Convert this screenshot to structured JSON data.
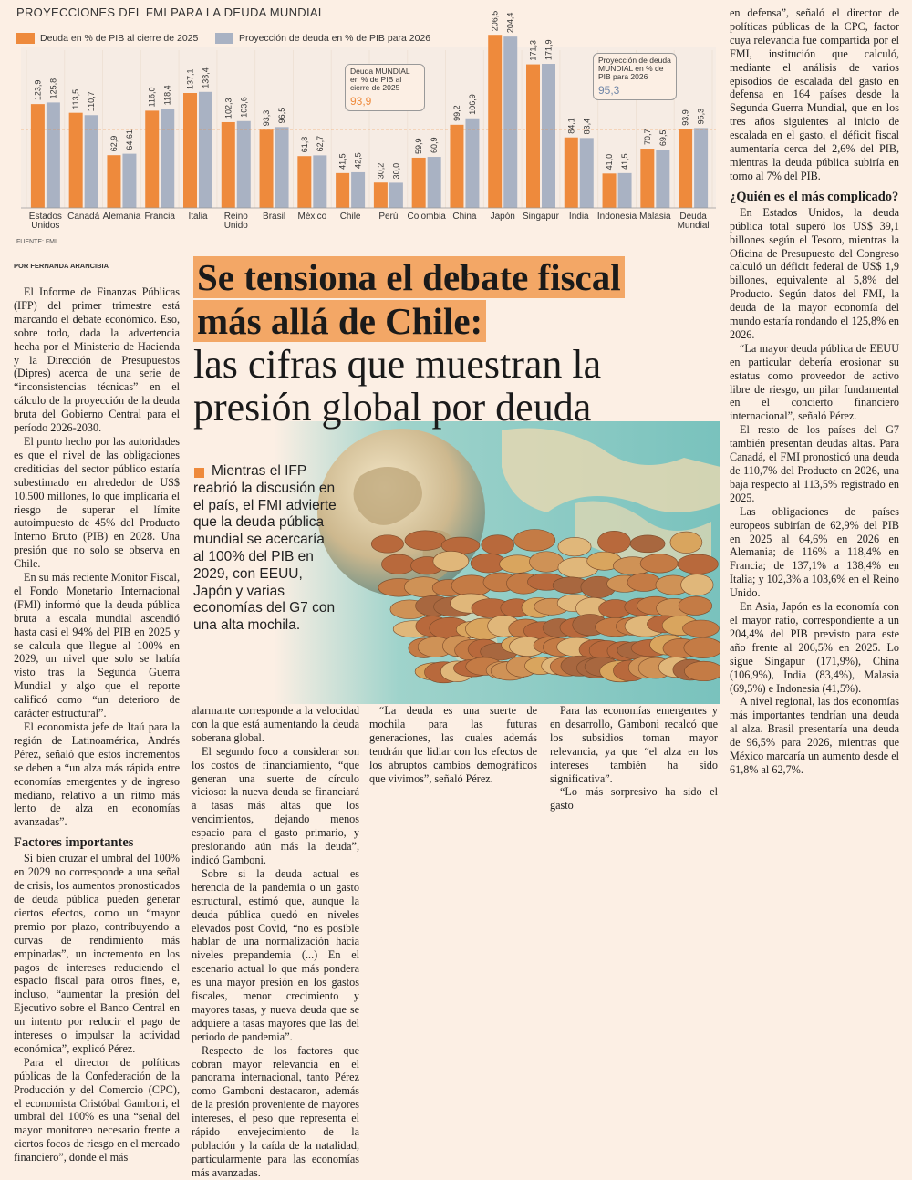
{
  "chart_data": {
    "type": "bar",
    "title": "PROYECCIONES DEL FMI PARA LA DEUDA MUNDIAL",
    "categories": [
      "Estados Unidos",
      "Canadá",
      "Alemania",
      "Francia",
      "Italia",
      "Reino Unido",
      "Brasil",
      "México",
      "Chile",
      "Perú",
      "Colombia",
      "China",
      "Japón",
      "Singapur",
      "India",
      "Indonesia",
      "Malasia",
      "Deuda Mundial"
    ],
    "series": [
      {
        "name": "Deuda en % de PIB al cierre de 2025",
        "color": "#ee8a3c",
        "values": [
          123.9,
          113.5,
          62.9,
          116.0,
          137.1,
          102.3,
          93.3,
          61.8,
          41.5,
          30.2,
          59.9,
          99.2,
          206.5,
          171.3,
          84.1,
          41.0,
          70.7,
          93.9
        ],
        "value_labels": [
          "123,9",
          "113,5",
          "62,9",
          "116,0",
          "137,1",
          "102,3",
          "93,3",
          "61,8",
          "41,5",
          "30,2",
          "59,9",
          "99,2",
          "206,5",
          "171,3",
          "84,1",
          "41,0",
          "70,7",
          "93,9"
        ]
      },
      {
        "name": "Proyección de deuda en % de PIB para 2026",
        "color": "#a9b2c3",
        "values": [
          125.8,
          110.7,
          64.61,
          118.4,
          138.4,
          103.6,
          96.5,
          62.7,
          42.5,
          30.0,
          60.9,
          106.9,
          204.4,
          171.9,
          83.4,
          41.5,
          69.5,
          95.3
        ],
        "value_labels": [
          "125,8",
          "110,7",
          "64,61",
          "118,4",
          "138,4",
          "103,6",
          "96,5",
          "62,7",
          "42,5",
          "30,0",
          "60,9",
          "106,9",
          "204,4",
          "171,9",
          "83,4",
          "41,5",
          "69,5",
          "95,3"
        ]
      }
    ],
    "ylim": [
      0,
      210
    ],
    "annotations": [
      {
        "text": "Deuda MUNDIAL en % de PIB al cierre de 2025",
        "value": "93,9"
      },
      {
        "text": "Proyección de deuda MUNDIAL en % de PIB para 2026",
        "value": "95,3"
      }
    ],
    "source": "FUENTE: FMI"
  },
  "article": {
    "byline": "POR FERNANDA ARANCIBIA",
    "headline": {
      "bold": "Se tensiona el debate fiscal más allá de Chile:",
      "light": "las cifras que muestran la presión global por deuda"
    },
    "pull_quote": "Mientras el IFP reabrió la discusión en el país, el FMI advierte que la deuda pública mundial se acercaría al 100% del PIB en 2029, con EEUU, Japón y varias economías del G7 con una alta mochila.",
    "columns": [
      [
        {
          "paragraph": "El Informe de Finanzas Públicas (IFP) del primer trimestre está marcando el debate económico. Eso, sobre todo, dada la advertencia hecha por el Ministerio de Hacienda y la Dirección de Presupuestos (Dipres) acerca de una serie de “inconsistencias técnicas” en el cálculo de la proyección de la deuda bruta del Gobierno Central para el período 2026-2030."
        },
        {
          "paragraph": "El punto hecho por las autoridades es que el nivel de las obligaciones crediticias del sector público estaría subestimado en alrededor de US$ 10.500 millones, lo que implicaría el riesgo de superar el límite autoimpuesto de 45% del Producto Interno Bruto (PIB) en 2028. Una presión que no solo se observa en Chile."
        },
        {
          "paragraph": "En su más reciente Monitor Fiscal, el Fondo Monetario Internacional (FMI) informó que la deuda pública bruta a escala mundial ascendió hasta casi el 94% del PIB en 2025 y se calcula que llegue al 100% en 2029, un nivel que solo se había visto tras la Segunda Guerra Mundial y algo que el reporte calificó como “un deterioro de carácter estructural”."
        },
        {
          "paragraph": "El economista jefe de Itaú para la región de Latinoamérica, Andrés Pérez, señaló que estos incrementos se deben a “un alza más rápida entre economías emergentes y de ingreso mediano, relativo a un ritmo más lento de alza en economías avanzadas”."
        },
        {
          "subhead": "Factores importantes"
        },
        {
          "paragraph": "Si bien cruzar el umbral del 100% en 2029 no corresponde a una señal de crisis, los aumentos pronosticados de deuda pública pueden generar ciertos efectos, como un “mayor premio por plazo, contribuyendo a curvas de rendimiento más empinadas”, un incremento en los pagos de intereses reduciendo el espacio fiscal para otros fines, e, incluso, “aumentar la presión del Ejecutivo sobre el Banco Central en un intento por reducir el pago de intereses o impulsar la actividad económica”, explicó Pérez."
        },
        {
          "paragraph": "Para el director de políticas públicas de la Confederación de la Producción y del Comercio (CPC), el economista Cristóbal Gamboni, el umbral del 100% es una “señal del mayor monitoreo necesario frente a ciertos focos de riesgo en el mercado financiero”, donde el más"
        }
      ],
      [
        {
          "paragraph": "alarmante corresponde a la velocidad con la que está aumentando la deuda soberana global."
        },
        {
          "paragraph": "El segundo foco a considerar son los costos de financiamiento, “que generan una suerte de círculo vicioso: la nueva deuda se financiará a tasas más altas que los vencimientos, dejando menos espacio para el gasto primario, y presionando aún más la deuda”, indicó Gamboni."
        },
        {
          "paragraph": "Sobre si la deuda actual es herencia de la pandemia o un gasto estructural, estimó que, aunque la deuda pública quedó en niveles elevados post Covid, “no es posible hablar de una normalización hacia niveles prepandemia (...) En el escenario actual lo que más pondera es una mayor presión en los gastos fiscales, menor crecimiento y mayores tasas, y nueva deuda que se adquiere a tasas mayores que las del periodo de pandemia”."
        },
        {
          "paragraph": "Respecto de los factores que cobran mayor relevancia en el panorama internacional, tanto Pérez como Gamboni destacaron, además de la presión proveniente de mayores intereses, el peso que representa el rápido envejecimiento de la población y la caída de la natalidad, particularmente para las economías más avanzadas."
        }
      ],
      [
        {
          "paragraph": "“La deuda es una suerte de mochila para las futuras generaciones, las cuales además tendrán que lidiar con los efectos de los abruptos cambios demográficos que vivimos”, señaló Pérez."
        }
      ],
      [
        {
          "paragraph": "Para las economías emergentes y en desarrollo, Gamboni recalcó que los subsidios toman mayor relevancia, ya que “el alza en los intereses también ha sido significativa”."
        },
        {
          "paragraph": "“Lo más sorpresivo ha sido el gasto"
        }
      ],
      [
        {
          "paragraph": "en defensa”, señaló el director de políticas públicas de la CPC, factor cuya relevancia fue compartida por el FMI, institución que calculó, mediante el análisis de varios episodios de escalada del gasto en defensa en 164 países desde la Segunda Guerra Mundial, que en los tres años siguientes al inicio de escalada en el gasto, el déficit fiscal aumentaría cerca del 2,6% del PIB, mientras la deuda pública subiría en torno al 7% del PIB."
        },
        {
          "subhead": "¿Quién es el más complicado?"
        },
        {
          "paragraph": "En Estados Unidos, la deuda pública total superó los US$ 39,1 billones según el Tesoro, mientras la Oficina de Presupuesto del Congreso calculó un déficit federal de US$ 1,9 billones, equivalente al 5,8% del Producto. Según datos del FMI, la deuda de la mayor economía del mundo estaría rondando el 125,8% en 2026."
        },
        {
          "paragraph": "“La mayor deuda pública de EEUU en particular debería erosionar su estatus como proveedor de activo libre de riesgo, un pilar fundamental en el concierto financiero internacional”, señaló Pérez."
        },
        {
          "paragraph": "El resto de los países del G7 también presentan deudas altas. Para Canadá, el FMI pronosticó una deuda de 110,7% del Producto en 2026, una baja respecto al 113,5% registrado en 2025."
        },
        {
          "paragraph": "Las obligaciones de países europeos subirían de 62,9% del PIB en 2025 al 64,6% en 2026 en Alemania; de 116% a 118,4% en Francia; de 137,1% a 138,4% en Italia; y 102,3% a 103,6% en el Reino Unido."
        },
        {
          "paragraph": "En Asia, Japón es la economía con el mayor ratio, correspondiente a un 204,4% del PIB previsto para este año frente al 206,5% en 2025. Lo sigue Singapur (171,9%), China (106,9%), India (83,4%), Malasia (69,5%) e Indonesia (41,5%)."
        },
        {
          "paragraph": "A nivel regional, las dos economías más importantes tendrían una deuda al alza. Brasil presentaría una deuda de 96,5% para 2026, mientras que México marcaría un aumento desde el 61,8% al 62,7%."
        }
      ]
    ]
  }
}
